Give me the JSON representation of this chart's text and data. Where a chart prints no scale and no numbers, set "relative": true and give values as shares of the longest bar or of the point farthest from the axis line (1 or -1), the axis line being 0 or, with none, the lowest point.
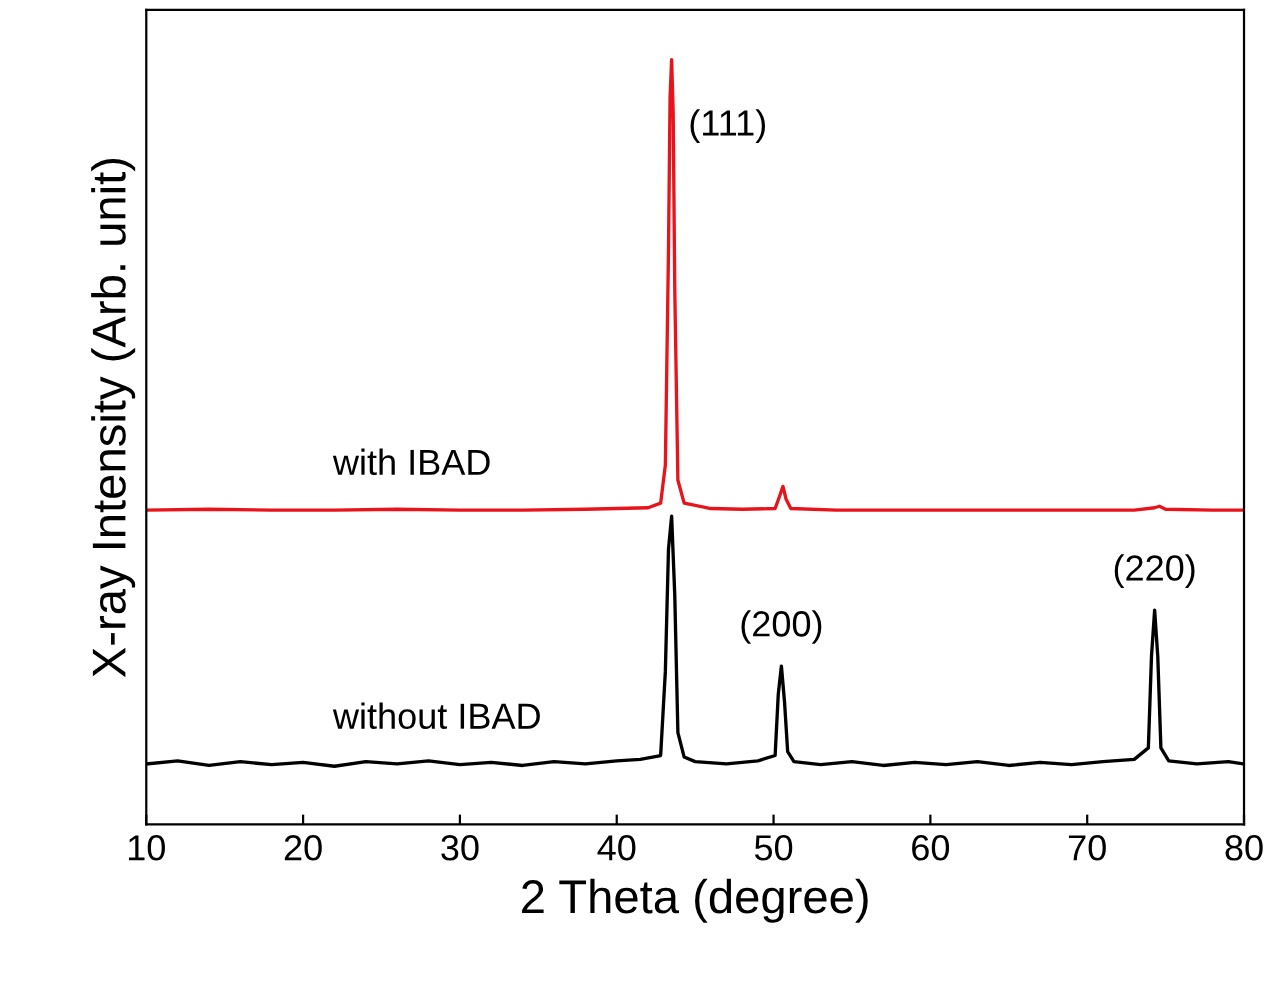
{
  "chart_data": {
    "type": "line",
    "relative": true,
    "xlabel": "2 Theta (degree)",
    "ylabel": "X-ray Intensity (Arb. unit)",
    "xlim": [
      10,
      80
    ],
    "xticks": [
      10,
      20,
      30,
      40,
      50,
      60,
      70,
      80
    ],
    "tick_labels": "x",
    "grid": false,
    "legend": false,
    "marker": "none",
    "line_style": "solid",
    "series": [
      {
        "name": "with IBAD",
        "color": "#e8141c",
        "x": [
          10,
          14,
          18,
          22,
          26,
          30,
          34,
          38,
          40,
          42,
          42.8,
          43.1,
          43.3,
          43.4,
          43.5,
          43.6,
          43.7,
          43.9,
          44.3,
          46,
          48,
          50.1,
          50.4,
          50.6,
          50.8,
          51.1,
          54,
          58,
          62,
          66,
          70,
          73,
          74.3,
          74.6,
          75,
          78,
          80
        ],
        "values": [
          0.411,
          0.412,
          0.411,
          0.411,
          0.412,
          0.411,
          0.411,
          0.412,
          0.413,
          0.414,
          0.42,
          0.47,
          0.75,
          0.95,
          1.0,
          0.93,
          0.7,
          0.45,
          0.42,
          0.413,
          0.412,
          0.413,
          0.43,
          0.442,
          0.425,
          0.413,
          0.411,
          0.411,
          0.411,
          0.411,
          0.411,
          0.411,
          0.414,
          0.416,
          0.412,
          0.411,
          0.411
        ]
      },
      {
        "name": "without IBAD",
        "color": "#000000",
        "x": [
          10,
          12,
          14,
          16,
          18,
          20,
          22,
          24,
          26,
          28,
          30,
          32,
          34,
          36,
          38,
          40,
          41.5,
          42.8,
          43.1,
          43.3,
          43.5,
          43.7,
          43.9,
          44.3,
          45,
          47,
          49,
          50.1,
          50.3,
          50.5,
          50.7,
          50.9,
          51.3,
          53,
          55,
          57,
          59,
          61,
          63,
          65,
          67,
          69,
          71,
          73,
          73.9,
          74.1,
          74.3,
          74.5,
          74.7,
          75.2,
          77,
          79,
          80
        ],
        "values": [
          0.079,
          0.083,
          0.077,
          0.082,
          0.078,
          0.081,
          0.076,
          0.082,
          0.079,
          0.083,
          0.078,
          0.081,
          0.077,
          0.082,
          0.079,
          0.083,
          0.085,
          0.09,
          0.2,
          0.36,
          0.403,
          0.3,
          0.12,
          0.088,
          0.082,
          0.079,
          0.083,
          0.09,
          0.17,
          0.207,
          0.16,
          0.095,
          0.082,
          0.078,
          0.082,
          0.077,
          0.081,
          0.078,
          0.082,
          0.077,
          0.081,
          0.078,
          0.082,
          0.085,
          0.1,
          0.22,
          0.28,
          0.22,
          0.1,
          0.083,
          0.079,
          0.082,
          0.079
        ]
      }
    ],
    "annotations": [
      {
        "text": "(111)",
        "x": 43.5,
        "y": 1.0
      },
      {
        "text": "(200)",
        "x": 50.5,
        "y": 0.207
      },
      {
        "text": "(220)",
        "x": 74.3,
        "y": 0.28
      }
    ]
  }
}
